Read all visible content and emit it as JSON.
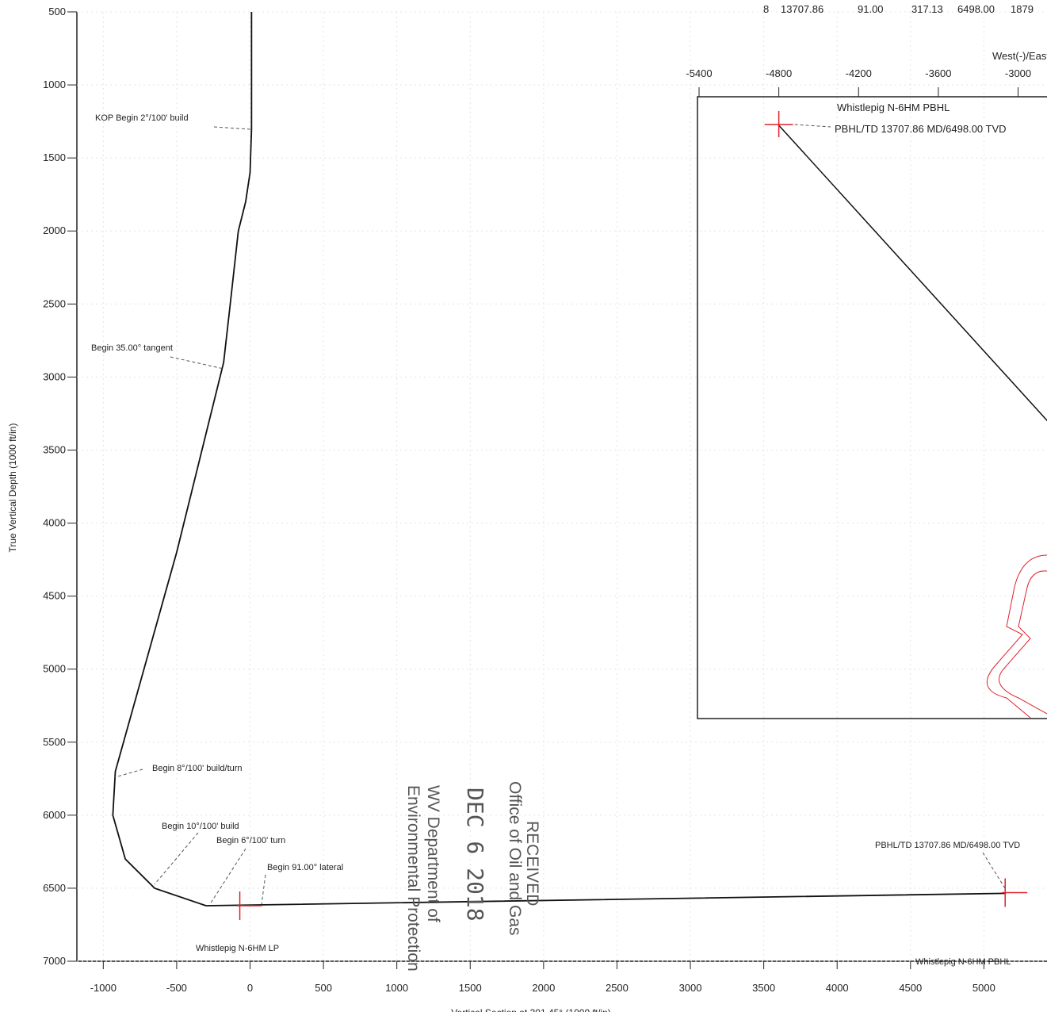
{
  "chart_data": {
    "type": "line",
    "ylabel": "True Vertical Depth (1000 ft/in)",
    "xlabel": "Vertical Section at 301.45° (1000 ft/in)",
    "xlim": [
      -1180,
      5430
    ],
    "ylim": [
      500,
      7000
    ],
    "y_inverted": true,
    "grid": true,
    "color": "#111111",
    "xticks": [
      -1000,
      -500,
      0,
      500,
      1000,
      1500,
      2000,
      2500,
      3000,
      3500,
      4000,
      4500,
      5000
    ],
    "yticks": [
      500,
      1000,
      1500,
      2000,
      2500,
      3000,
      3500,
      4000,
      4500,
      5000,
      5500,
      6000,
      6500,
      7000
    ],
    "x": [
      10,
      10,
      0,
      -30,
      -80,
      -135,
      -180,
      -500,
      -918,
      -935,
      -850,
      -650,
      -300,
      5150
    ],
    "values": [
      500,
      1300,
      1600,
      1800,
      2000,
      2500,
      2900,
      4200,
      5700,
      6000,
      6300,
      6500,
      6620,
      6535
    ],
    "markers": {
      "color": "#e0202a",
      "x": [
        -70,
        5145
      ],
      "values": [
        6620,
        6530
      ]
    },
    "annotations": [
      "KOP Begin 2°/100' build",
      "Begin 35.00° tangent",
      "Begin 8°/100' build/turn",
      "Begin 10°/100' build",
      "Begin 6°/100' turn",
      "Begin 91.00° lateral",
      "Whistlepig N-6HM LP",
      "PBHL/TD 13707.86 MD/6498.00 TVD",
      "Whistlepig N-6HM PBHL"
    ],
    "table_row": [
      "8",
      "13707.86",
      "91.00",
      "317.13",
      "6498.00",
      "1879"
    ],
    "stamp": [
      "RECEIVED",
      "Office of Oil and Gas",
      "DEC 6 2018",
      "WV Department of",
      "Environmental Protection"
    ],
    "inset": {
      "xlabel": "West(-)/East(+)",
      "xlim": [
        -5400,
        -2550
      ],
      "xticks": [
        -5400,
        -4800,
        -4200,
        -3600,
        -3000
      ],
      "target_label": "Whistlepig N-6HM PBHL",
      "pbhl_label": "PBHL/TD 13707.86 MD/6498.00 TVD"
    }
  }
}
